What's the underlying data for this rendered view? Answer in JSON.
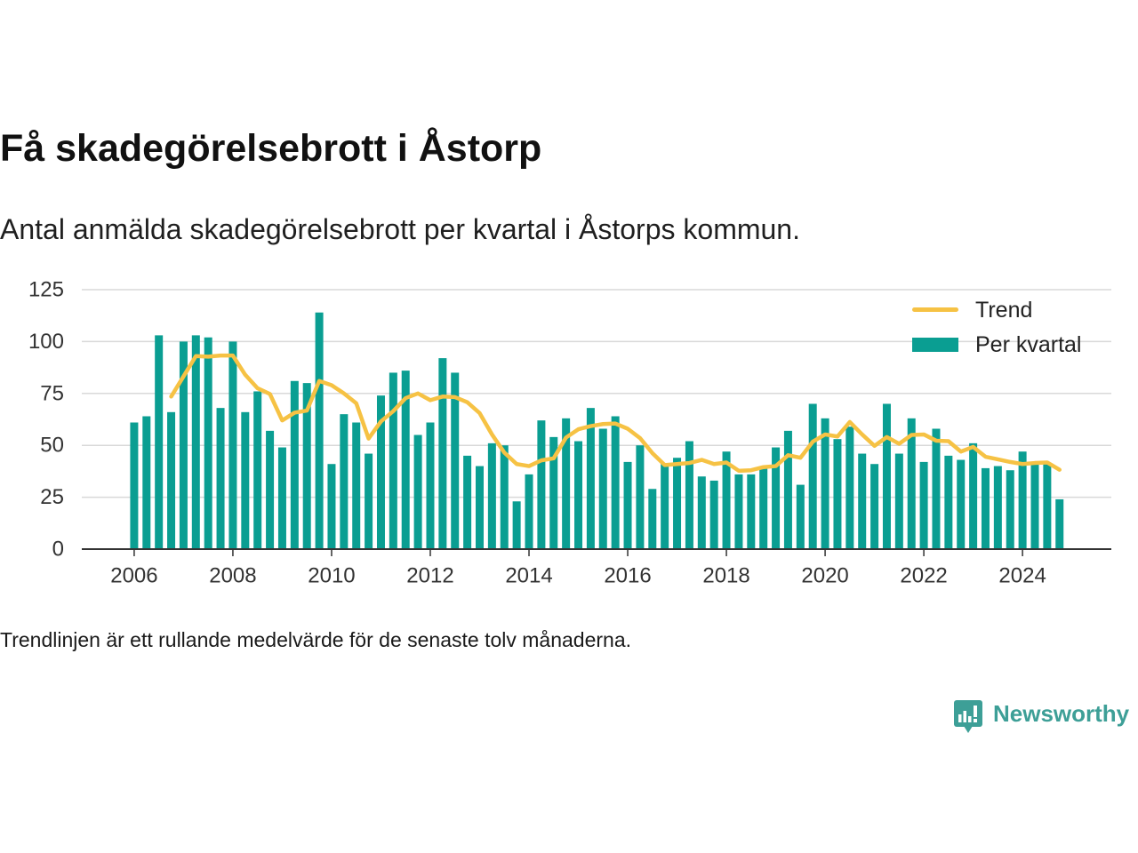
{
  "chart_data": {
    "type": "bar",
    "title": "Få skadegörelsebrott i Åstorp",
    "subtitle": "Antal anmälda skadegörelsebrott per kvartal i Åstorps kommun.",
    "note": "Trendlinjen är ett rullande medelvärde för de senaste tolv månaderna.",
    "x": [
      "2006-01-01",
      "2006-04-01",
      "2006-07-01",
      "2006-10-01",
      "2007-01-01",
      "2007-04-01",
      "2007-07-01",
      "2007-10-01",
      "2008-01-01",
      "2008-04-01",
      "2008-07-01",
      "2008-10-01",
      "2009-01-01",
      "2009-04-01",
      "2009-07-01",
      "2009-10-01",
      "2010-01-01",
      "2010-04-01",
      "2010-07-01",
      "2010-10-01",
      "2011-01-01",
      "2011-04-01",
      "2011-07-01",
      "2011-10-01",
      "2012-01-01",
      "2012-04-01",
      "2012-07-01",
      "2012-10-01",
      "2013-01-01",
      "2013-04-01",
      "2013-07-01",
      "2013-10-01",
      "2014-01-01",
      "2014-04-01",
      "2014-07-01",
      "2014-10-01",
      "2015-01-01",
      "2015-04-01",
      "2015-07-01",
      "2015-10-01",
      "2016-01-01",
      "2016-04-01",
      "2016-07-01",
      "2016-10-01",
      "2017-01-01",
      "2017-04-01",
      "2017-07-01",
      "2017-10-01",
      "2018-01-01",
      "2018-04-01",
      "2018-07-01",
      "2018-10-01",
      "2019-01-01",
      "2019-04-01",
      "2019-07-01",
      "2019-10-01",
      "2020-01-01",
      "2020-04-01",
      "2020-07-01",
      "2020-10-01",
      "2021-01-01",
      "2021-04-01",
      "2021-07-01",
      "2021-10-01",
      "2022-01-01",
      "2022-04-01",
      "2022-07-01",
      "2022-10-01",
      "2023-01-01",
      "2023-04-01",
      "2023-07-01",
      "2023-10-01",
      "2024-01-01",
      "2024-04-01",
      "2024-07-01",
      "2024-10-01"
    ],
    "series": [
      {
        "name": "Per kvartal",
        "type": "bar",
        "color": "#0a9e92",
        "values": [
          61,
          64,
          103,
          66,
          100,
          103,
          102,
          68,
          100,
          66,
          76,
          57,
          49,
          81,
          80,
          114,
          41,
          65,
          61,
          46,
          74,
          85,
          86,
          55,
          61,
          92,
          85,
          45,
          40,
          51,
          50,
          23,
          36,
          62,
          54,
          63,
          52,
          68,
          58,
          64,
          42,
          50,
          29,
          41,
          44,
          52,
          35,
          33,
          47,
          36,
          36,
          39,
          49,
          57,
          31,
          70,
          63,
          53,
          59,
          46,
          41,
          70,
          46,
          63,
          42,
          58,
          45,
          43,
          51,
          39,
          40,
          38,
          47,
          41,
          41,
          24
        ]
      },
      {
        "name": "Trend",
        "type": "line",
        "color": "#f6c244",
        "values": [
          null,
          null,
          null,
          73.5,
          83.25,
          93,
          92.75,
          93.25,
          93.25,
          84,
          77.5,
          74.75,
          62,
          65.75,
          66.75,
          81,
          79,
          75,
          70.25,
          53.25,
          61.5,
          66.5,
          72.75,
          75,
          71.75,
          73.5,
          73.25,
          70.75,
          65.5,
          55.25,
          46.5,
          41,
          40,
          42.75,
          43.75,
          53.75,
          57.75,
          59.25,
          60.25,
          60.5,
          58,
          53.5,
          46.25,
          40.5,
          41,
          41.5,
          43,
          41,
          41.75,
          37.75,
          38,
          39.5,
          40,
          45.25,
          44,
          51.75,
          55.25,
          54.25,
          61.25,
          55.25,
          49.75,
          54,
          50.75,
          55,
          55.25,
          52.25,
          52,
          47,
          49.25,
          44.5,
          43.25,
          42,
          41,
          41.5,
          41.75,
          38.25
        ]
      }
    ],
    "x_ticks": [
      "2006",
      "2008",
      "2010",
      "2012",
      "2014",
      "2016",
      "2018",
      "2020",
      "2022",
      "2024"
    ],
    "y_ticks": [
      0,
      25,
      50,
      75,
      100,
      125
    ],
    "xlim": [
      "2004-12-09",
      "2025-10-19"
    ],
    "ylim": [
      0,
      125
    ],
    "grid": "horizontal",
    "legend_position": "top-right"
  },
  "brand": {
    "name": "Newsworthy",
    "icon": "newsworthy-logo-icon",
    "color": "#3d9f97"
  }
}
